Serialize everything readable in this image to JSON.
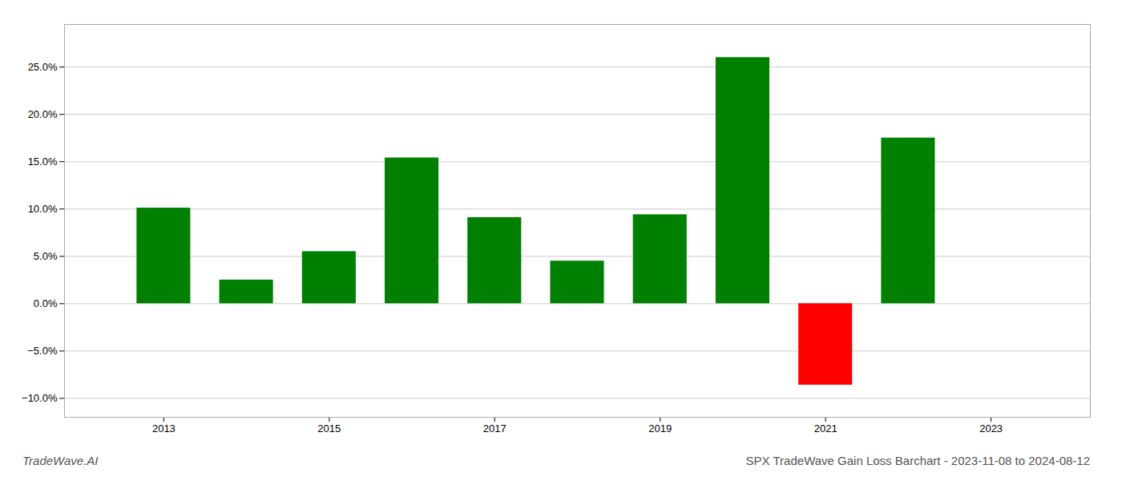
{
  "chart_data": {
    "type": "bar",
    "title": "SPX TradeWave Gain Loss Barchart - 2023-11-08 to 2024-08-12",
    "annotations": [
      "TradeWave.AI"
    ],
    "x": [
      2013,
      2014,
      2015,
      2016,
      2017,
      2018,
      2019,
      2020,
      2021,
      2022
    ],
    "values": [
      0.101,
      0.025,
      0.055,
      0.154,
      0.091,
      0.045,
      0.094,
      0.26,
      -0.086,
      0.175
    ],
    "colors": [
      "#008000",
      "#008000",
      "#008000",
      "#008000",
      "#008000",
      "#008000",
      "#008000",
      "#008000",
      "#ff0000",
      "#008000"
    ],
    "xlim": [
      2011.8,
      2024.2
    ],
    "xticks": [
      2013,
      2015,
      2017,
      2019,
      2021,
      2023
    ],
    "ylim": [
      -0.12,
      0.295
    ],
    "yticks": [
      {
        "value": -0.1,
        "label": "−10.0%"
      },
      {
        "value": -0.05,
        "label": "−5.0%"
      },
      {
        "value": 0.0,
        "label": "0.0%"
      },
      {
        "value": 0.05,
        "label": "5.0%"
      },
      {
        "value": 0.1,
        "label": "10.0%"
      },
      {
        "value": 0.15,
        "label": "15.0%"
      },
      {
        "value": 0.2,
        "label": "20.0%"
      },
      {
        "value": 0.25,
        "label": "25.0%"
      }
    ],
    "grid": true
  }
}
